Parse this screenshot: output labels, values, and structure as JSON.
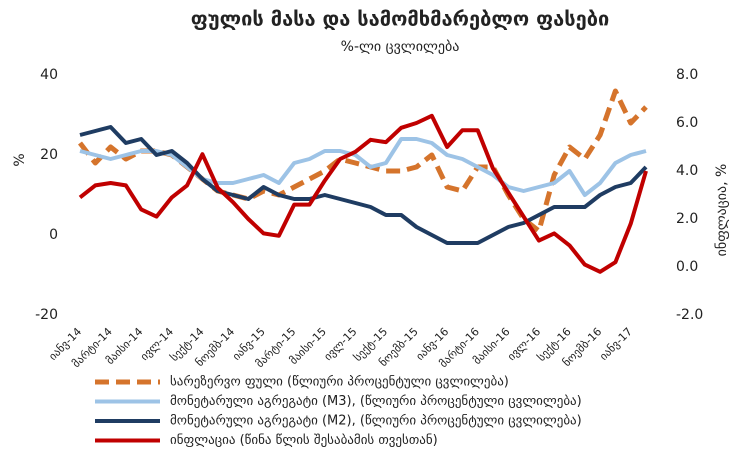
{
  "chart_data": {
    "type": "line",
    "title": "ფულის მასა და სამომხმარებლო ფასები",
    "subtitle": "%-ლი ცვლილება",
    "y_label": "%",
    "y2_label": "ინფლაცია, %",
    "categories": [
      "იანვ-14",
      null,
      "მარტი-14",
      null,
      "მაისი-14",
      null,
      "ივლ-14",
      null,
      "სექტ-14",
      null,
      "ნოემბ-14",
      null,
      "იანვ-15",
      null,
      "მარტი-15",
      null,
      "მაისი-15",
      null,
      "ივლ-15",
      null,
      "სექტ-15",
      null,
      "ნოემბ-15",
      null,
      "იანვ-16",
      null,
      "მარტი-16",
      null,
      "მაისი-16",
      null,
      "ივლ-16",
      null,
      "სექტ-16",
      null,
      "ნოემბ-16",
      null,
      "იანვ-17",
      null
    ],
    "ylim": [
      -20,
      40
    ],
    "yticks": [
      -20,
      0,
      20,
      40
    ],
    "y2lim": [
      -2,
      8
    ],
    "y2ticks": [
      {
        "value": -2,
        "label": "-2.0"
      },
      {
        "value": 0,
        "label": "0.0"
      },
      {
        "value": 2,
        "label": "2.0"
      },
      {
        "value": 4,
        "label": "4.0"
      },
      {
        "value": 6,
        "label": "6.0"
      },
      {
        "value": 8,
        "label": "8.0"
      }
    ],
    "grid": false,
    "series": [
      {
        "name": "სარეზერვო ფული (წლიური პროცენტული ცვლილება)",
        "color": "#d5742c",
        "line_style": "dashed",
        "values": [
          23,
          18,
          22,
          19,
          21,
          21,
          20,
          17,
          14,
          11,
          10,
          9,
          11,
          10,
          12,
          14,
          16,
          19,
          18,
          17,
          16,
          16,
          17,
          20,
          12,
          11,
          17,
          17,
          10,
          4,
          1,
          15,
          22,
          19,
          25,
          36,
          28,
          32
        ]
      },
      {
        "name": "მონეტარული აგრეგატი (M3), (წლიური პროცენტული ცვლილება)",
        "color": "#9dc3e6",
        "line_style": "solid",
        "values": [
          21,
          20,
          19,
          20,
          21,
          21,
          20,
          17,
          14,
          13,
          13,
          14,
          15,
          13,
          18,
          19,
          21,
          21,
          20,
          17,
          18,
          24,
          24,
          23,
          20,
          19,
          17,
          15,
          12,
          11,
          12,
          13,
          16,
          10,
          13,
          18,
          20,
          21
        ]
      },
      {
        "name": "მონეტარული აგრეგატი (M2), (წლიური პროცენტული ცვლილება)",
        "color": "#1f3c62",
        "line_style": "solid",
        "values": [
          25,
          26,
          27,
          23,
          24,
          20,
          21,
          18,
          14,
          11,
          10,
          9,
          12,
          10,
          9,
          9,
          10,
          9,
          8,
          7,
          5,
          5,
          2,
          0,
          -2,
          -2,
          -2,
          0,
          2,
          3,
          5,
          7,
          7,
          7,
          10,
          12,
          13,
          17
        ]
      },
      {
        "name": "ინფლაცია (წინა წლის შესაბამის თვესთან)",
        "color": "#c00000",
        "line_style": "solid",
        "axis": "y2",
        "values": [
          2.9,
          3.4,
          3.5,
          3.4,
          2.4,
          2.1,
          2.9,
          3.4,
          4.7,
          3.3,
          2.7,
          2.0,
          1.4,
          1.3,
          2.6,
          2.6,
          3.6,
          4.5,
          4.8,
          5.3,
          5.2,
          5.8,
          6.0,
          6.3,
          5.0,
          5.7,
          5.7,
          4.1,
          3.1,
          2.1,
          1.1,
          1.4,
          0.9,
          0.1,
          -0.2,
          0.2,
          1.8,
          4.0
        ]
      }
    ]
  }
}
